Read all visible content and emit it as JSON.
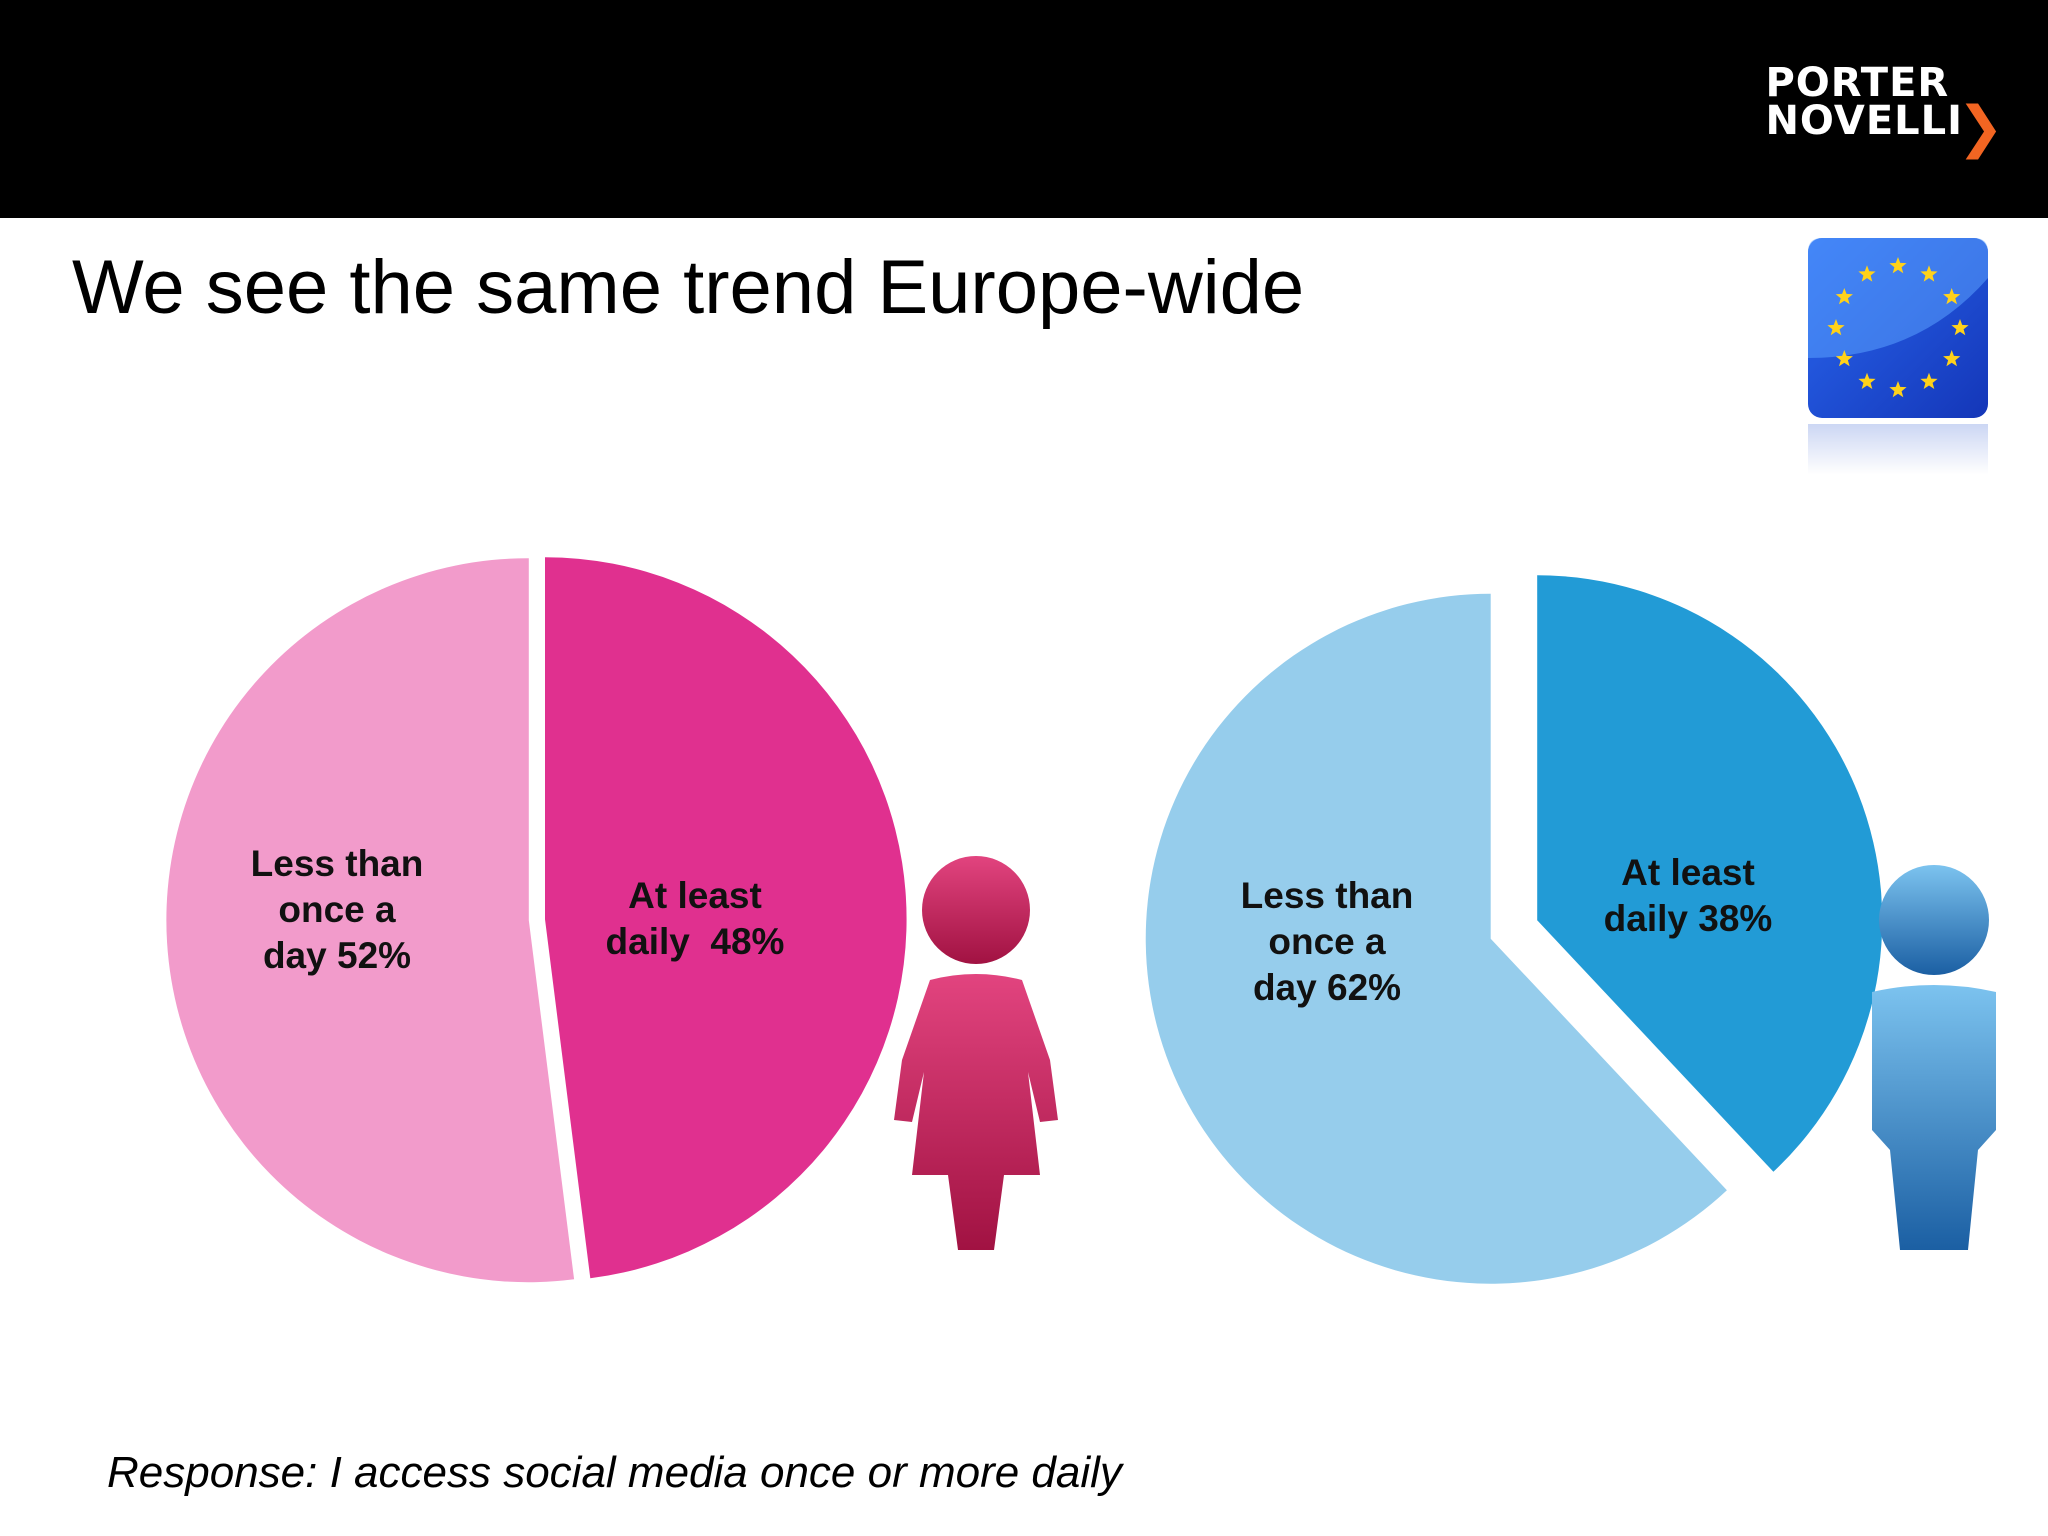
{
  "header": {
    "logo_line1": "PORTER",
    "logo_line2": "NOVELLI",
    "logo_mark": "❯"
  },
  "title": "We see the same trend Europe-wide",
  "flag": {
    "icon": "eu-flag-icon",
    "colors": {
      "background": "#1f4fd8",
      "stars": "#ffd21a"
    }
  },
  "footnote": "Response: I access social media once or more daily",
  "chart_data": [
    {
      "type": "pie",
      "title": "",
      "icon": "woman-icon",
      "slices": [
        {
          "label": "At least daily",
          "value": 48,
          "label_text": "At least daily  48%",
          "color": "#e0308f"
        },
        {
          "label": "Less than once a day",
          "value": 52,
          "label_text": "Less than once a day 52%",
          "color": "#f29bcb"
        }
      ]
    },
    {
      "type": "pie",
      "title": "",
      "icon": "man-icon",
      "slices": [
        {
          "label": "At least daily",
          "value": 38,
          "label_text": "At least daily 38%",
          "color": "#229bd6"
        },
        {
          "label": "Less than once a day",
          "value": 62,
          "label_text": "Less than once a day 62%",
          "color": "#96cdec"
        }
      ]
    }
  ]
}
